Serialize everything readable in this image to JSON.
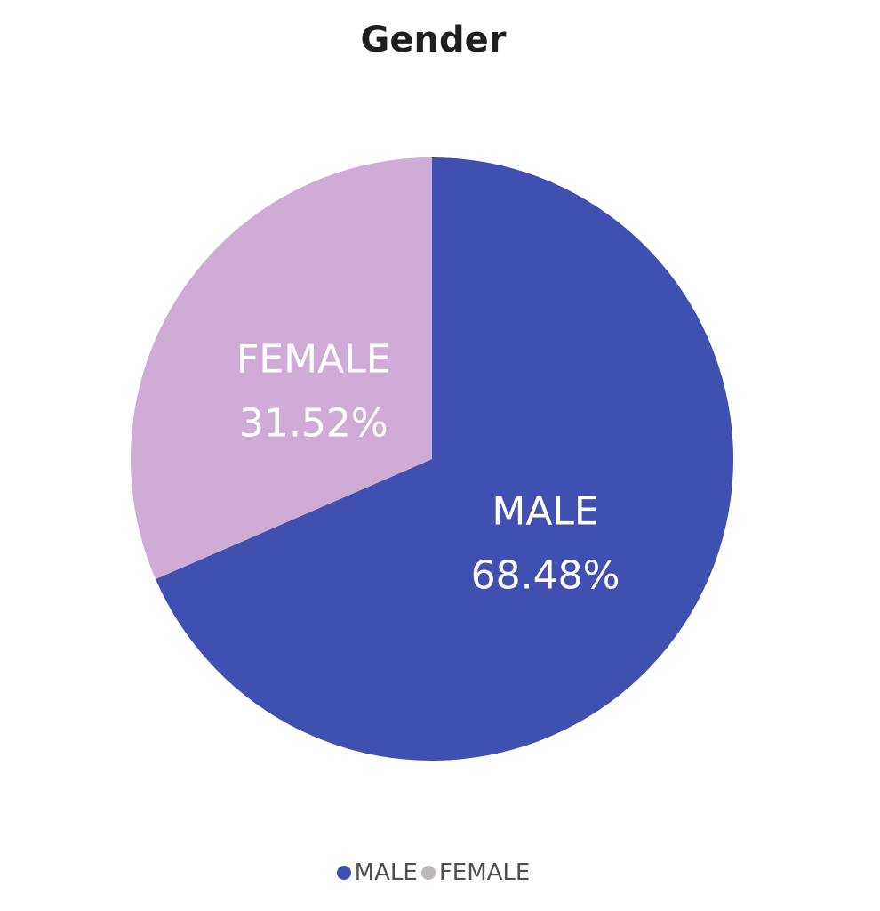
{
  "chart_data": {
    "type": "pie",
    "title": "Gender",
    "categories": [
      "MALE",
      "FEMALE"
    ],
    "values": [
      68.48,
      31.52
    ],
    "labels": [
      "68.48%",
      "31.52%"
    ],
    "colors": [
      "#4050b0",
      "#cfacd6"
    ],
    "legend": {
      "placement": "bottom-center",
      "items": [
        {
          "label": "MALE",
          "color": "#4050b0"
        },
        {
          "label": "FEMALE",
          "color": "#bdb7b7"
        }
      ]
    }
  }
}
